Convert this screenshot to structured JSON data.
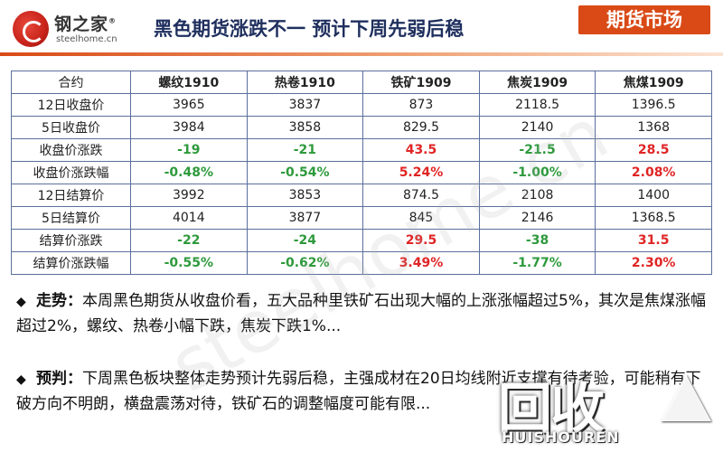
{
  "header": {
    "logo_cn": "钢之家",
    "logo_reg": "®",
    "logo_en": "steelhome.cn",
    "title": "黑色期货涨跌不一 预计下周先弱后稳",
    "badge": "期货市场"
  },
  "table": {
    "headers": [
      "合约",
      "螺纹1910",
      "热卷1910",
      "铁矿1909",
      "焦炭1909",
      "焦煤1909"
    ],
    "rows": [
      {
        "label": "12日收盘价",
        "cells": [
          {
            "v": "3965",
            "s": "n"
          },
          {
            "v": "3837",
            "s": "n"
          },
          {
            "v": "873",
            "s": "n"
          },
          {
            "v": "2118.5",
            "s": "n"
          },
          {
            "v": "1396.5",
            "s": "n"
          }
        ]
      },
      {
        "label": "5日收盘价",
        "cells": [
          {
            "v": "3984",
            "s": "n"
          },
          {
            "v": "3858",
            "s": "n"
          },
          {
            "v": "829.5",
            "s": "n"
          },
          {
            "v": "2140",
            "s": "n"
          },
          {
            "v": "1368",
            "s": "n"
          }
        ]
      },
      {
        "label": "收盘价涨跌",
        "cells": [
          {
            "v": "-19",
            "s": "down"
          },
          {
            "v": "-21",
            "s": "down"
          },
          {
            "v": "43.5",
            "s": "up"
          },
          {
            "v": "-21.5",
            "s": "down"
          },
          {
            "v": "28.5",
            "s": "up"
          }
        ]
      },
      {
        "label": "收盘价涨跌幅",
        "cells": [
          {
            "v": "-0.48%",
            "s": "down"
          },
          {
            "v": "-0.54%",
            "s": "down"
          },
          {
            "v": "5.24%",
            "s": "up"
          },
          {
            "v": "-1.00%",
            "s": "down"
          },
          {
            "v": "2.08%",
            "s": "up"
          }
        ]
      },
      {
        "label": "12日结算价",
        "cells": [
          {
            "v": "3992",
            "s": "n"
          },
          {
            "v": "3853",
            "s": "n"
          },
          {
            "v": "874.5",
            "s": "n"
          },
          {
            "v": "2108",
            "s": "n"
          },
          {
            "v": "1400",
            "s": "n"
          }
        ]
      },
      {
        "label": "5日结算价",
        "cells": [
          {
            "v": "4014",
            "s": "n"
          },
          {
            "v": "3877",
            "s": "n"
          },
          {
            "v": "845",
            "s": "n"
          },
          {
            "v": "2146",
            "s": "n"
          },
          {
            "v": "1368.5",
            "s": "n"
          }
        ]
      },
      {
        "label": "结算价涨跌",
        "cells": [
          {
            "v": "-22",
            "s": "down"
          },
          {
            "v": "-24",
            "s": "down"
          },
          {
            "v": "29.5",
            "s": "up"
          },
          {
            "v": "-38",
            "s": "down"
          },
          {
            "v": "31.5",
            "s": "up"
          }
        ]
      },
      {
        "label": "结算价涨跌幅",
        "cells": [
          {
            "v": "-0.55%",
            "s": "down"
          },
          {
            "v": "-0.62%",
            "s": "down"
          },
          {
            "v": "3.49%",
            "s": "up"
          },
          {
            "v": "-1.77%",
            "s": "down"
          },
          {
            "v": "2.30%",
            "s": "up"
          }
        ]
      }
    ],
    "colors": {
      "up": "#e02525",
      "down": "#2e9a3c"
    }
  },
  "paragraphs": [
    {
      "bullet": "◆",
      "lead": "走势：",
      "text": "本周黑色期货从收盘价看，五大品种里铁矿石出现大幅的上涨涨幅超过5%，其次是焦煤涨幅超过2%，螺纹、热卷小幅下跌，焦炭下跌1%..."
    },
    {
      "bullet": "◆",
      "lead": "预判：",
      "text": "下周黑色板块整体走势预计先弱后稳，主强成材在20日均线附近支撑有待考验，可能稍有下破方向不明朗，横盘震荡对待，铁矿石的调整幅度可能有限..."
    }
  ],
  "watermark": {
    "text": "steelhome.cn",
    "recycle_cn": "回收",
    "recycle_en": "HUISHOUREN"
  }
}
